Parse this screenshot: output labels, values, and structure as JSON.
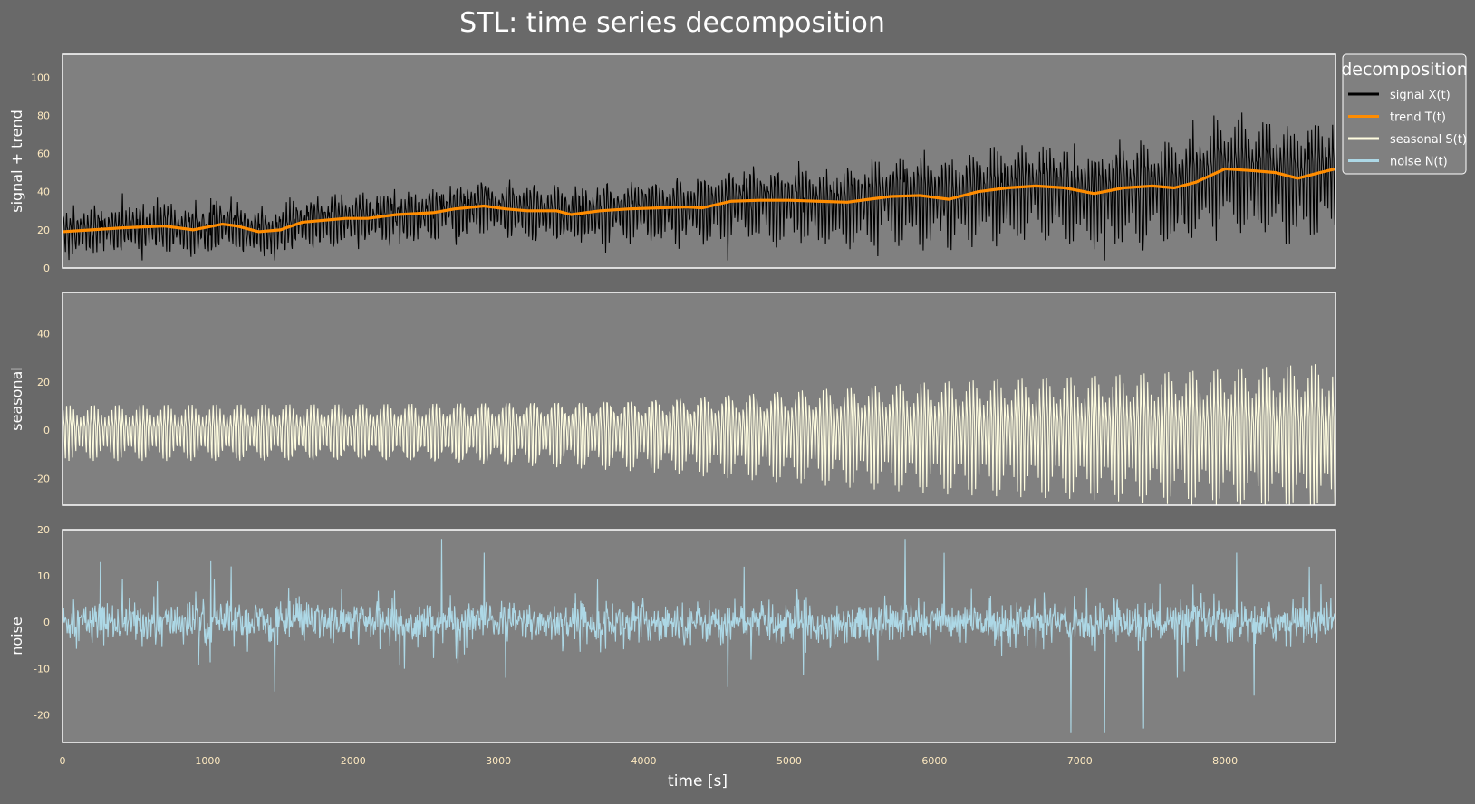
{
  "title": "STL: time series decomposition",
  "xlabel": "time [s]",
  "legend": {
    "title": "decomposition",
    "items": [
      {
        "label": "signal X(t)",
        "color": "#000000"
      },
      {
        "label": "trend T(t)",
        "color": "#ff8c00"
      },
      {
        "label": "seasonal S(t)",
        "color": "#fffde0"
      },
      {
        "label": "noise N(t)",
        "color": "#add8e6"
      }
    ]
  },
  "colors": {
    "figure_bg": "#696969",
    "axes_bg": "#808080",
    "spine": "#ffffff",
    "tick_label": "#fde9c0",
    "text": "#ffffff"
  },
  "chart_data": {
    "type": "line",
    "x_range": [
      0,
      8760
    ],
    "xticks": [
      0,
      1000,
      2000,
      3000,
      4000,
      5000,
      6000,
      7000,
      8000
    ],
    "sample_points": 2190,
    "panels": [
      {
        "ylabel": "signal + trend",
        "ylim": [
          0,
          112
        ],
        "yticks": [
          0,
          20,
          40,
          60,
          80,
          100
        ],
        "series": [
          {
            "name": "signal X(t)",
            "color": "#000000",
            "note_range": "about 5 to 107, daily cycles around the trend"
          },
          {
            "name": "trend T(t)",
            "color": "#ff8c00",
            "points": [
              [
                0,
                19
              ],
              [
                200,
                20
              ],
              [
                400,
                21
              ],
              [
                700,
                22
              ],
              [
                900,
                20
              ],
              [
                1100,
                23
              ],
              [
                1200,
                22
              ],
              [
                1350,
                19
              ],
              [
                1500,
                20
              ],
              [
                1650,
                24
              ],
              [
                1800,
                25
              ],
              [
                1950,
                26
              ],
              [
                2100,
                26
              ],
              [
                2300,
                28
              ],
              [
                2550,
                29
              ],
              [
                2700,
                31
              ],
              [
                2900,
                32.5
              ],
              [
                3050,
                31
              ],
              [
                3200,
                30
              ],
              [
                3400,
                30
              ],
              [
                3500,
                28
              ],
              [
                3700,
                30
              ],
              [
                3900,
                31
              ],
              [
                4100,
                31.5
              ],
              [
                4300,
                32
              ],
              [
                4400,
                31.5
              ],
              [
                4600,
                35
              ],
              [
                4800,
                35.5
              ],
              [
                5000,
                35.5
              ],
              [
                5200,
                35
              ],
              [
                5400,
                34.5
              ],
              [
                5550,
                36
              ],
              [
                5700,
                37.5
              ],
              [
                5900,
                38
              ],
              [
                6100,
                36
              ],
              [
                6300,
                40
              ],
              [
                6500,
                42
              ],
              [
                6700,
                43
              ],
              [
                6900,
                42
              ],
              [
                7100,
                39
              ],
              [
                7300,
                42
              ],
              [
                7500,
                43
              ],
              [
                7650,
                42
              ],
              [
                7800,
                45
              ],
              [
                8000,
                52
              ],
              [
                8200,
                51
              ],
              [
                8350,
                50
              ],
              [
                8500,
                47
              ],
              [
                8650,
                50
              ],
              [
                8760,
                52
              ]
            ]
          }
        ]
      },
      {
        "ylabel": "seasonal",
        "ylim": [
          -31,
          57
        ],
        "yticks": [
          -20,
          0,
          20,
          40
        ],
        "series": [
          {
            "name": "seasonal S(t)",
            "color": "#fffde0",
            "amplitude_points": [
              [
                0,
                14
              ],
              [
                1000,
                15
              ],
              [
                2000,
                16
              ],
              [
                3000,
                18
              ],
              [
                4000,
                20
              ],
              [
                5000,
                24
              ],
              [
                6000,
                28
              ],
              [
                7000,
                30
              ],
              [
                8000,
                34
              ],
              [
                8760,
                38
              ]
            ]
          }
        ]
      },
      {
        "ylabel": "noise",
        "ylim": [
          -26,
          20
        ],
        "yticks": [
          -20,
          -10,
          0,
          10,
          20
        ],
        "series": [
          {
            "name": "noise N(t)",
            "color": "#add8e6",
            "spikes": [
              [
                260,
                13
              ],
              [
                1460,
                -15
              ],
              [
                2610,
                18
              ],
              [
                2900,
                15
              ],
              [
                3050,
                -12
              ],
              [
                4580,
                -14
              ],
              [
                4690,
                12
              ],
              [
                5800,
                18
              ],
              [
                6940,
                -24
              ],
              [
                7170,
                -24
              ],
              [
                7440,
                -23
              ],
              [
                7670,
                -12
              ],
              [
                8080,
                15
              ],
              [
                8580,
                12
              ]
            ]
          }
        ]
      }
    ]
  }
}
